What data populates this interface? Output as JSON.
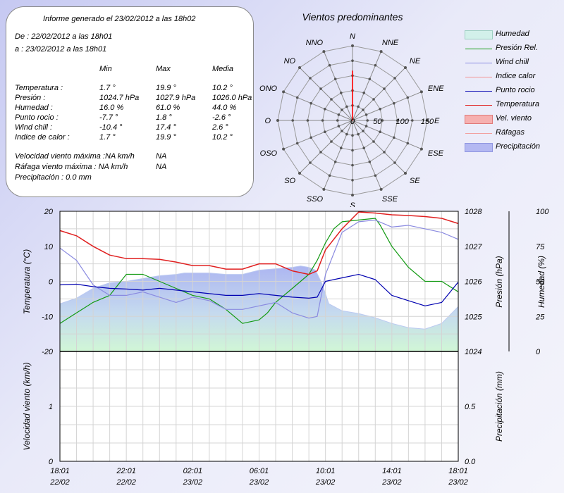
{
  "report": {
    "header": "Informe generado el 23/02/2012 a las 18h02",
    "from": "De : 22/02/2012 a las 18h01",
    "to": "a : 23/02/2012 a las 18h01",
    "columns": [
      "Min",
      "Max",
      "Media"
    ],
    "rows": [
      {
        "label": "Temperatura :",
        "min": "1.7 °",
        "max": "19.9 °",
        "avg": "10.2 °"
      },
      {
        "label": "Presión :",
        "min": "1024.7 hPa",
        "max": "1027.9 hPa",
        "avg": "1026.0 hPa"
      },
      {
        "label": "Humedad :",
        "min": "16.0 %",
        "max": "61.0 %",
        "avg": "44.0 %"
      },
      {
        "label": "Punto rocio :",
        "min": "-7.7 °",
        "max": "1.8 °",
        "avg": "-2.6 °"
      },
      {
        "label": "Wind chill :",
        "min": "-10.4 °",
        "max": "17.4 °",
        "avg": "2.6 °"
      },
      {
        "label": "Indice de calor :",
        "min": "1.7 °",
        "max": "19.9 °",
        "avg": "10.2 °"
      }
    ],
    "wind_max_label": "Velocidad viento máxima :NA km/h",
    "wind_max_value": "NA",
    "gust_max_label": "Ráfaga viento máxima :  NA km/h",
    "gust_max_value": "NA",
    "precip": "Precipitación : 0.0 mm"
  },
  "chart_data": [
    {
      "type": "polar",
      "title": "Vientos predominantes",
      "directions": [
        "N",
        "NNE",
        "NE",
        "ENE",
        "E",
        "ESE",
        "SE",
        "SSE",
        "S",
        "SSO",
        "SO",
        "OSO",
        "O",
        "ONO",
        "NO",
        "NNO"
      ],
      "radial_ticks": [
        0,
        50,
        100,
        150
      ],
      "rmax": 150,
      "values": [
        100,
        0,
        0,
        0,
        0,
        0,
        0,
        0,
        0,
        0,
        0,
        0,
        0,
        0,
        0,
        0
      ],
      "series_color": "#ff0000"
    },
    {
      "type": "line",
      "x_ticks": [
        {
          "t": 0,
          "time": "18:01",
          "date": "22/02"
        },
        {
          "t": 4,
          "time": "22:01",
          "date": "22/02"
        },
        {
          "t": 8,
          "time": "02:01",
          "date": "23/02"
        },
        {
          "t": 12,
          "time": "06:01",
          "date": "23/02"
        },
        {
          "t": 16,
          "time": "10:01",
          "date": "23/02"
        },
        {
          "t": 20,
          "time": "14:01",
          "date": "23/02"
        },
        {
          "t": 24,
          "time": "18:01",
          "date": "23/02"
        }
      ],
      "xlim": [
        0,
        24
      ],
      "axes": {
        "temperature": {
          "label": "Temperatura (°C)",
          "range": [
            -20,
            20
          ],
          "ticks": [
            "20",
            "10",
            "0",
            "-10",
            "-20"
          ]
        },
        "pressure": {
          "label": "Presión (hPa)",
          "range": [
            1024,
            1028
          ],
          "ticks": [
            "1028",
            "1027",
            "1026",
            "1025",
            "1024"
          ]
        },
        "humidity": {
          "label": "Humedad (%)",
          "range": [
            0,
            100
          ],
          "ticks": [
            "100",
            "75",
            "50",
            "25",
            "0"
          ]
        }
      },
      "series": [
        {
          "name": "Humedad",
          "axis": "humidity",
          "color": "#b4c4f0",
          "x": [
            0,
            1,
            2,
            3,
            4,
            5,
            6,
            7,
            7.5,
            8,
            9,
            10,
            11,
            12,
            13,
            14,
            14.5,
            15,
            15.4,
            15.8,
            16.2,
            17,
            18,
            19,
            20,
            21,
            22,
            23,
            24
          ],
          "y": [
            34,
            38,
            45,
            49,
            50,
            52,
            54,
            55,
            56,
            56,
            56,
            55,
            55,
            58,
            59,
            60,
            61,
            60,
            58,
            48,
            34,
            29,
            27,
            24,
            20,
            17,
            16,
            20,
            32
          ]
        },
        {
          "name": "Presión Rel.",
          "axis": "pressure",
          "color": "#129a12",
          "x": [
            0,
            1,
            2,
            3,
            4,
            5,
            6,
            7,
            8,
            9,
            10,
            11,
            12,
            12.5,
            13,
            14,
            15,
            15.5,
            16,
            16.5,
            17,
            18,
            19,
            19.3,
            20,
            21,
            22,
            23,
            24
          ],
          "y": [
            1024.8,
            1025.1,
            1025.4,
            1025.6,
            1026.2,
            1026.2,
            1026.0,
            1025.8,
            1025.6,
            1025.5,
            1025.2,
            1024.8,
            1024.9,
            1025.1,
            1025.4,
            1025.8,
            1026.2,
            1026.6,
            1027.1,
            1027.5,
            1027.7,
            1027.75,
            1027.8,
            1027.6,
            1027.0,
            1026.4,
            1026.0,
            1026.0,
            1025.7
          ]
        },
        {
          "name": "Wind chill",
          "axis": "temperature",
          "color": "#8a8ae0",
          "x": [
            0,
            1,
            2,
            3,
            4,
            5,
            6,
            7,
            8,
            9,
            10,
            11,
            12,
            13,
            14,
            15,
            15.5,
            16,
            17,
            18,
            19,
            20,
            21,
            22,
            23,
            24
          ],
          "y": [
            9.5,
            6,
            -1,
            -4,
            -4,
            -3,
            -4.5,
            -6,
            -4.5,
            -5.5,
            -8,
            -8,
            -7,
            -6,
            -9,
            -10.5,
            -10,
            2,
            14,
            17,
            17.5,
            15.5,
            16,
            15,
            14,
            12
          ]
        },
        {
          "name": "Indice calor",
          "axis": "temperature",
          "color": "#f29494",
          "x": [],
          "y": []
        },
        {
          "name": "Punto rocio",
          "axis": "temperature",
          "color": "#0000b0",
          "x": [
            0,
            1,
            2,
            3,
            4,
            5,
            6,
            7,
            8,
            9,
            10,
            11,
            12,
            13,
            14,
            15,
            15.5,
            16,
            17,
            18,
            19,
            20,
            21,
            22,
            23,
            24
          ],
          "y": [
            -1,
            -0.8,
            -1.5,
            -2,
            -2.2,
            -2.5,
            -2,
            -2.5,
            -3,
            -3.5,
            -4,
            -4,
            -3.5,
            -4,
            -4.5,
            -4.8,
            -4.5,
            0,
            1,
            2,
            0.5,
            -4,
            -5.5,
            -7,
            -6,
            -0.2
          ]
        },
        {
          "name": "Temperatura",
          "axis": "temperature",
          "color": "#e02020",
          "x": [
            0,
            1,
            2,
            3,
            4,
            5,
            6,
            7,
            8,
            9,
            10,
            11,
            12,
            13,
            14,
            15,
            15.5,
            16,
            17,
            18,
            19,
            20,
            21,
            22,
            23,
            24
          ],
          "y": [
            14.5,
            13,
            10,
            7.5,
            6.5,
            6.5,
            6.3,
            5.5,
            4.5,
            4.5,
            3.5,
            3.5,
            5,
            5,
            3,
            2,
            3,
            9,
            15,
            19.8,
            19.5,
            19,
            18.8,
            18.5,
            18,
            16.5
          ]
        }
      ]
    },
    {
      "type": "line",
      "xlim": [
        0,
        24
      ],
      "axes": {
        "wind": {
          "label": "Velocidad viento (km/h)",
          "range": [
            0,
            2
          ],
          "ticks": [
            "1",
            "0"
          ]
        },
        "precip": {
          "label": "Precipitación (mm)",
          "range": [
            0,
            1
          ],
          "ticks": [
            "0.5",
            "0.0"
          ]
        }
      },
      "series": []
    }
  ],
  "legend": [
    {
      "label": "Humedad",
      "color": "#d2f0ea",
      "border": "#9ecfc2",
      "kind": "box"
    },
    {
      "label": "Presión Rel.",
      "color": "#129a12",
      "kind": "line"
    },
    {
      "label": "Wind chill",
      "color": "#8a8ae0",
      "kind": "line"
    },
    {
      "label": "Indice calor",
      "color": "#f29494",
      "kind": "line"
    },
    {
      "label": "Punto rocio",
      "color": "#0000b0",
      "kind": "line"
    },
    {
      "label": "Temperatura",
      "color": "#e02020",
      "kind": "line"
    },
    {
      "label": "Vel. viento",
      "color": "#f6b0b0",
      "border": "#e07a7a",
      "kind": "box"
    },
    {
      "label": "Ráfagas",
      "color": "#f2a0a0",
      "kind": "line"
    },
    {
      "label": "Precipitación",
      "color": "#b4b8f2",
      "border": "#9096e0",
      "kind": "box"
    }
  ]
}
